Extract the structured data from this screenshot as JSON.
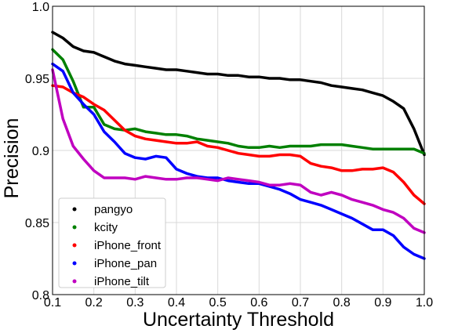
{
  "chart_data": {
    "type": "line",
    "title": "",
    "xlabel": "Uncertainty Threshold",
    "ylabel": "Precision",
    "xlim": [
      0.1,
      1.0
    ],
    "ylim": [
      0.8,
      1.0
    ],
    "grid": true,
    "legend_position": "bottom-left",
    "xticks": [
      "0.1",
      "0.2",
      "0.3",
      "0.4",
      "0.5",
      "0.6",
      "0.7",
      "0.8",
      "0.9",
      "1.0"
    ],
    "yticks": [
      "0.8",
      "0.85",
      "0.9",
      "0.95",
      "1.0"
    ],
    "x": [
      0.1,
      0.125,
      0.15,
      0.175,
      0.2,
      0.225,
      0.25,
      0.275,
      0.3,
      0.325,
      0.35,
      0.375,
      0.4,
      0.425,
      0.45,
      0.475,
      0.5,
      0.525,
      0.55,
      0.575,
      0.6,
      0.625,
      0.65,
      0.675,
      0.7,
      0.725,
      0.75,
      0.775,
      0.8,
      0.825,
      0.85,
      0.875,
      0.9,
      0.925,
      0.95,
      0.975,
      1.0
    ],
    "series": [
      {
        "name": "pangyo",
        "color": "#000000",
        "values": [
          0.982,
          0.978,
          0.972,
          0.969,
          0.968,
          0.965,
          0.962,
          0.96,
          0.959,
          0.958,
          0.957,
          0.956,
          0.956,
          0.955,
          0.954,
          0.953,
          0.953,
          0.952,
          0.952,
          0.951,
          0.951,
          0.95,
          0.95,
          0.949,
          0.949,
          0.948,
          0.947,
          0.945,
          0.944,
          0.943,
          0.942,
          0.94,
          0.938,
          0.934,
          0.929,
          0.915,
          0.897
        ]
      },
      {
        "name": "kcity",
        "color": "#008000",
        "values": [
          0.97,
          0.963,
          0.948,
          0.93,
          0.93,
          0.918,
          0.915,
          0.914,
          0.915,
          0.913,
          0.912,
          0.911,
          0.911,
          0.91,
          0.908,
          0.907,
          0.906,
          0.905,
          0.903,
          0.902,
          0.902,
          0.903,
          0.902,
          0.903,
          0.903,
          0.903,
          0.904,
          0.904,
          0.904,
          0.903,
          0.902,
          0.901,
          0.901,
          0.901,
          0.901,
          0.901,
          0.898
        ]
      },
      {
        "name": "iPhone_front",
        "color": "#ff0000",
        "values": [
          0.945,
          0.944,
          0.94,
          0.937,
          0.932,
          0.928,
          0.921,
          0.914,
          0.91,
          0.908,
          0.907,
          0.906,
          0.905,
          0.905,
          0.906,
          0.903,
          0.902,
          0.9,
          0.898,
          0.897,
          0.896,
          0.896,
          0.897,
          0.897,
          0.896,
          0.891,
          0.889,
          0.888,
          0.886,
          0.886,
          0.887,
          0.887,
          0.888,
          0.885,
          0.878,
          0.869,
          0.863
        ]
      },
      {
        "name": "iPhone_pan",
        "color": "#0000ff",
        "values": [
          0.96,
          0.955,
          0.94,
          0.932,
          0.925,
          0.913,
          0.906,
          0.898,
          0.895,
          0.894,
          0.896,
          0.895,
          0.887,
          0.884,
          0.882,
          0.881,
          0.881,
          0.879,
          0.878,
          0.877,
          0.877,
          0.875,
          0.873,
          0.87,
          0.866,
          0.864,
          0.862,
          0.859,
          0.856,
          0.853,
          0.849,
          0.845,
          0.845,
          0.841,
          0.833,
          0.828,
          0.825
        ]
      },
      {
        "name": "iPhone_tilt",
        "color": "#c000c0",
        "values": [
          0.956,
          0.922,
          0.903,
          0.894,
          0.886,
          0.881,
          0.881,
          0.881,
          0.88,
          0.882,
          0.881,
          0.88,
          0.88,
          0.881,
          0.881,
          0.88,
          0.879,
          0.881,
          0.88,
          0.879,
          0.878,
          0.876,
          0.876,
          0.877,
          0.876,
          0.871,
          0.869,
          0.871,
          0.869,
          0.866,
          0.864,
          0.862,
          0.859,
          0.857,
          0.853,
          0.846,
          0.843
        ]
      }
    ]
  }
}
